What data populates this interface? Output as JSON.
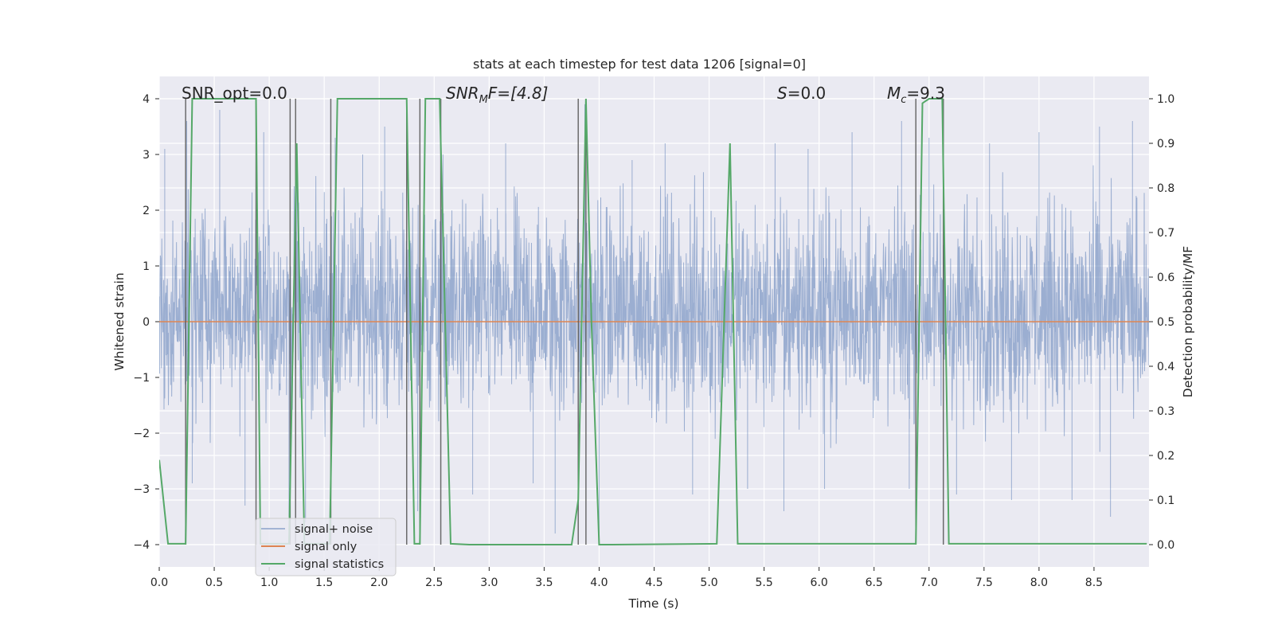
{
  "chart_data": {
    "type": "line",
    "title": "stats at each timestep for test data 1206 [signal=0]",
    "xlabel": "Time (s)",
    "ylabel_left": "Whitened strain",
    "ylabel_right": "Detection probability/MF",
    "xlim": [
      0.0,
      9.0
    ],
    "ylim_left": [
      -4.4,
      4.4
    ],
    "ylim_right": [
      -0.05,
      1.05
    ],
    "x_ticks": [
      0.0,
      0.5,
      1.0,
      1.5,
      2.0,
      2.5,
      3.0,
      3.5,
      4.0,
      4.5,
      5.0,
      5.5,
      6.0,
      6.5,
      7.0,
      7.5,
      8.0,
      8.5
    ],
    "x_tick_labels": [
      "0.0",
      "0.5",
      "1.0",
      "1.5",
      "2.0",
      "2.5",
      "3.0",
      "3.5",
      "4.0",
      "4.5",
      "5.0",
      "5.5",
      "6.0",
      "6.5",
      "7.0",
      "7.5",
      "8.0",
      "8.5"
    ],
    "y_ticks_left": [
      4,
      3,
      2,
      1,
      0,
      -1,
      -2,
      -3,
      -4
    ],
    "y_tick_labels_left": [
      "4",
      "3",
      "2",
      "1",
      "0",
      "−1",
      "−2",
      "−3",
      "−4"
    ],
    "y_ticks_right": [
      1.0,
      0.9,
      0.8,
      0.7,
      0.6,
      0.5,
      0.4,
      0.3,
      0.2,
      0.1,
      0.0
    ],
    "y_tick_labels_right": [
      "1.0",
      "0.9",
      "0.8",
      "0.7",
      "0.6",
      "0.5",
      "0.4",
      "0.3",
      "0.2",
      "0.1",
      "0.0"
    ],
    "annotations": {
      "snr_opt": "SNR_opt=0.0",
      "snr_mf_pre": "SNR",
      "snr_mf_sub": "M",
      "snr_mf_post": "F=[4.8]",
      "s_italic": "S",
      "s_post": "=0.0",
      "mc_italic": "M",
      "mc_sub": "c",
      "mc_post": "=9.3"
    },
    "legend": {
      "location": "lower-left",
      "entries": [
        "signal+ noise",
        "signal only",
        "signal statistics"
      ]
    },
    "series": [
      {
        "name": "signal+ noise",
        "kind": "noise",
        "axis": "left",
        "color": "#4c72b0",
        "typical_range": [
          -2.2,
          2.6
        ],
        "peak_values": [
          {
            "x": 0.05,
            "y": 3.1
          },
          {
            "x": 0.25,
            "y": 3.6
          },
          {
            "x": 0.3,
            "y": -2.9
          },
          {
            "x": 0.55,
            "y": 3.8
          },
          {
            "x": 0.78,
            "y": -3.3
          },
          {
            "x": 0.95,
            "y": 3.4
          },
          {
            "x": 1.18,
            "y": -3.5
          },
          {
            "x": 1.25,
            "y": 3.1
          },
          {
            "x": 1.33,
            "y": -3.6
          },
          {
            "x": 1.6,
            "y": 3.3
          },
          {
            "x": 1.85,
            "y": 3.0
          },
          {
            "x": 2.05,
            "y": 3.5
          },
          {
            "x": 2.35,
            "y": -3.4
          },
          {
            "x": 2.58,
            "y": 3.0
          },
          {
            "x": 2.85,
            "y": -3.1
          },
          {
            "x": 3.15,
            "y": 3.2
          },
          {
            "x": 3.4,
            "y": -2.9
          },
          {
            "x": 3.6,
            "y": -3.8
          },
          {
            "x": 3.87,
            "y": 3.9
          },
          {
            "x": 4.0,
            "y": -3.8
          },
          {
            "x": 4.3,
            "y": 2.9
          },
          {
            "x": 4.6,
            "y": 3.2
          },
          {
            "x": 4.85,
            "y": -3.1
          },
          {
            "x": 5.35,
            "y": -3.0
          },
          {
            "x": 5.6,
            "y": 3.2
          },
          {
            "x": 5.68,
            "y": -3.4
          },
          {
            "x": 5.9,
            "y": 3.1
          },
          {
            "x": 6.05,
            "y": -3.0
          },
          {
            "x": 6.3,
            "y": 3.4
          },
          {
            "x": 6.75,
            "y": 3.6
          },
          {
            "x": 6.82,
            "y": -3.0
          },
          {
            "x": 7.0,
            "y": 3.3
          },
          {
            "x": 7.25,
            "y": -3.1
          },
          {
            "x": 7.55,
            "y": 3.2
          },
          {
            "x": 7.75,
            "y": -3.2
          },
          {
            "x": 8.0,
            "y": 3.4
          },
          {
            "x": 8.3,
            "y": -3.2
          },
          {
            "x": 8.55,
            "y": 3.5
          },
          {
            "x": 8.65,
            "y": -3.5
          },
          {
            "x": 8.85,
            "y": 3.6
          }
        ]
      },
      {
        "name": "signal only",
        "kind": "line",
        "axis": "left",
        "color": "#dd8452",
        "x": [
          0.0,
          9.0
        ],
        "y": [
          0.0,
          0.0
        ]
      },
      {
        "name": "signal statistics",
        "kind": "line",
        "axis": "right",
        "color": "#55a868",
        "x": [
          0.0,
          0.08,
          0.24,
          0.3,
          0.88,
          0.92,
          1.18,
          1.25,
          1.32,
          1.55,
          1.62,
          2.25,
          2.32,
          2.37,
          2.42,
          2.55,
          2.65,
          2.82,
          3.75,
          3.81,
          3.88,
          3.93,
          4.0,
          4.12,
          5.07,
          5.19,
          5.26,
          6.88,
          6.94,
          7.0,
          7.12,
          7.18,
          8.98
        ],
        "y": [
          0.19,
          0.002,
          0.002,
          1.0,
          1.0,
          0.002,
          0.002,
          0.9,
          0.002,
          0.002,
          1.0,
          1.0,
          0.002,
          0.002,
          1.0,
          1.0,
          0.002,
          0.0,
          0.0,
          0.1,
          1.0,
          0.5,
          0.0,
          0.0,
          0.002,
          0.9,
          0.002,
          0.002,
          0.99,
          1.0,
          1.0,
          0.002,
          0.002
        ]
      },
      {
        "name": "markers",
        "kind": "vlines",
        "axis": "left",
        "color": "#555555",
        "x": [
          0.24,
          0.88,
          1.19,
          1.24,
          1.56,
          2.25,
          2.37,
          2.56,
          3.81,
          3.88,
          6.88,
          7.13
        ]
      }
    ]
  }
}
